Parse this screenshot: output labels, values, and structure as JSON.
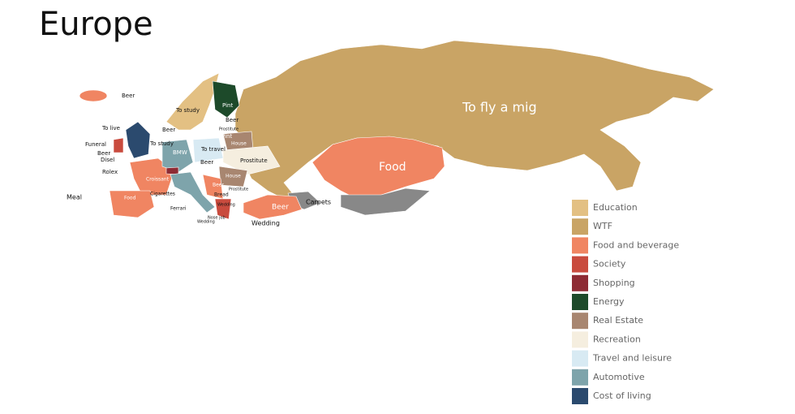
{
  "title": "Europe",
  "map_labels": [
    "To fly a mig",
    "Food",
    "Beer",
    "Carpets",
    "Wedding",
    "Beer",
    "To live",
    "Funeral",
    "To study",
    "Beer",
    "Disel",
    "Rolex",
    "Meal",
    "Food",
    "Croissant",
    "Cigarettes",
    "Ferrari",
    "Nose job",
    "Wedding",
    "BMW",
    "To study",
    "Pint",
    "Beer",
    "Prostitute",
    "Pint",
    "House",
    "To travel",
    "Beer",
    "Prostitute",
    "House",
    "Prostitute",
    "Beer",
    "Bread",
    "Wedding",
    "Beer"
  ],
  "legend": [
    {
      "name": "Education",
      "color": "#e3c083"
    },
    {
      "name": "WTF",
      "color": "#c9a465"
    },
    {
      "name": "Food and beverage",
      "color": "#f08562"
    },
    {
      "name": "Society",
      "color": "#c94b3e"
    },
    {
      "name": "Shopping",
      "color": "#8e2b34"
    },
    {
      "name": "Energy",
      "color": "#1d4a2a"
    },
    {
      "name": "Real Estate",
      "color": "#a88670"
    },
    {
      "name": "Recreation",
      "color": "#f5eedf"
    },
    {
      "name": "Travel and leisure",
      "color": "#d8eaf3"
    },
    {
      "name": "Automotive",
      "color": "#7ea4ab"
    },
    {
      "name": "Cost of living",
      "color": "#2b4a6e"
    }
  ]
}
